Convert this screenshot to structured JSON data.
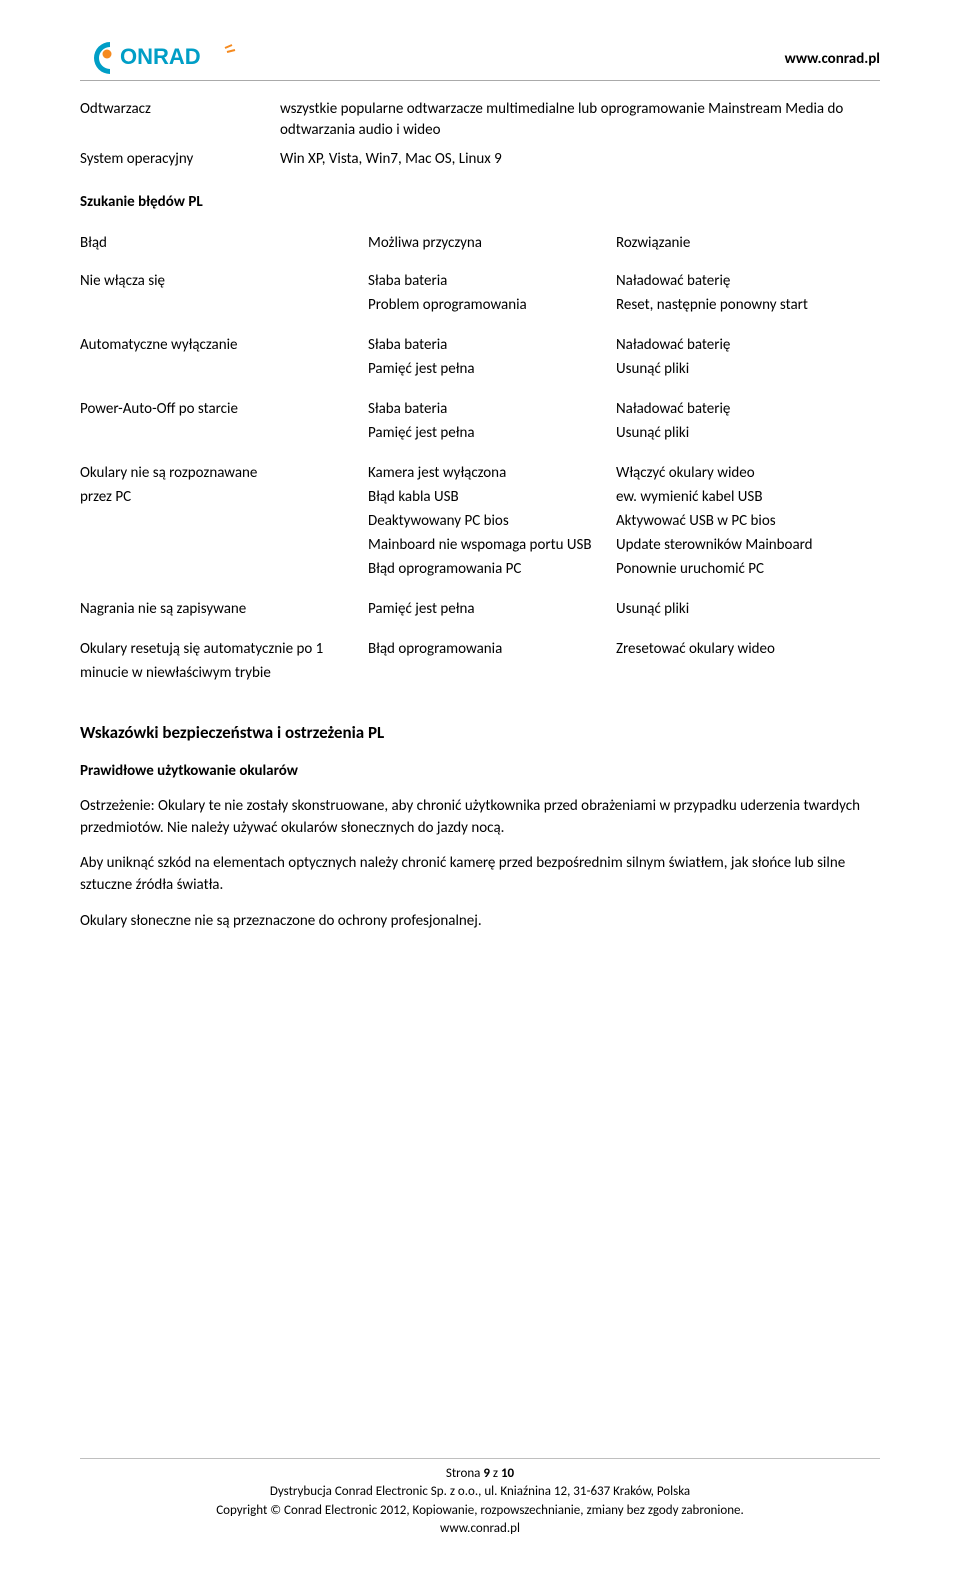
{
  "header": {
    "url": "www.conrad.pl",
    "logo": {
      "text": "ONRAD",
      "color": "#009ec6",
      "bg": "#ffffff"
    }
  },
  "definitions": [
    {
      "label": "Odtwarzacz",
      "value": "wszystkie popularne odtwarzacze multimedialne lub oprogramowanie Mainstream Media do odtwarzania audio i wideo"
    },
    {
      "label": "System operacyjny",
      "value": "Win XP, Vista, Win7, Mac OS, Linux 9"
    }
  ],
  "trouble_heading": "Szukanie błędów PL",
  "trouble_cols": [
    "Błąd",
    "Możliwa przyczyna",
    "Rozwiązanie"
  ],
  "trouble_rows": [
    {
      "c1": [
        "Nie włącza się"
      ],
      "c2": [
        "Słaba bateria",
        "Problem oprogramowania"
      ],
      "c3": [
        "Naładować baterię",
        "Reset, następnie ponowny start"
      ]
    },
    {
      "c1": [
        "Automatyczne wyłączanie"
      ],
      "c2": [
        "Słaba bateria",
        "Pamięć jest pełna"
      ],
      "c3": [
        "Naładować baterię",
        "Usunąć pliki"
      ]
    },
    {
      "c1": [
        "Power-Auto-Off po starcie"
      ],
      "c2": [
        "Słaba bateria",
        "Pamięć jest pełna"
      ],
      "c3": [
        "Naładować baterię",
        "Usunąć pliki"
      ]
    },
    {
      "c1": [
        "Okulary nie są rozpoznawane",
        "przez PC"
      ],
      "c2": [
        "Kamera jest wyłączona",
        "Błąd kabla USB",
        "Deaktywowany PC bios",
        "Mainboard nie wspomaga portu USB",
        "Błąd oprogramowania PC"
      ],
      "c3": [
        "Włączyć okulary wideo",
        "ew. wymienić kabel USB",
        "Aktywować USB w PC bios",
        "Update sterowników Mainboard",
        "Ponownie uruchomić PC"
      ]
    },
    {
      "c1": [
        "Nagrania nie są zapisywane"
      ],
      "c2": [
        "Pamięć jest pełna"
      ],
      "c3": [
        "Usunąć pliki"
      ]
    },
    {
      "c1": [
        "Okulary resetują się automatycznie po 1 minucie w niewłaściwym trybie"
      ],
      "c2": [
        "Błąd oprogramowania"
      ],
      "c3": [
        " Zresetować okulary wideo"
      ]
    }
  ],
  "safety_heading": "Wskazówki bezpieczeństwa i ostrzeżenia PL",
  "usage_heading": "Prawidłowe użytkowanie okularów",
  "paragraphs": [
    "Ostrzeżenie: Okulary te nie zostały skonstruowane, aby chronić użytkownika przed obrażeniami w przypadku uderzenia twardych przedmiotów. Nie należy używać okularów słonecznych do jazdy nocą.",
    "Aby uniknąć szkód na elementach optycznych należy chronić kamerę przed bezpośrednim silnym światłem, jak słońce lub silne sztuczne źródła światła.",
    "Okulary słoneczne nie są przeznaczone do ochrony profesjonalnej."
  ],
  "footer": {
    "page_label": "Strona ",
    "page_num": "9",
    "page_total": " z 10",
    "page_bold": "10",
    "line1": "Dystrybucja Conrad Electronic Sp. z o.o., ul. Kniaźnina 12, 31-637 Kraków, Polska",
    "line2": "Copyright © Conrad Electronic 2012, Kopiowanie, rozpowszechnianie, zmiany bez zgody zabronione.",
    "line3": "www.conrad.pl"
  }
}
